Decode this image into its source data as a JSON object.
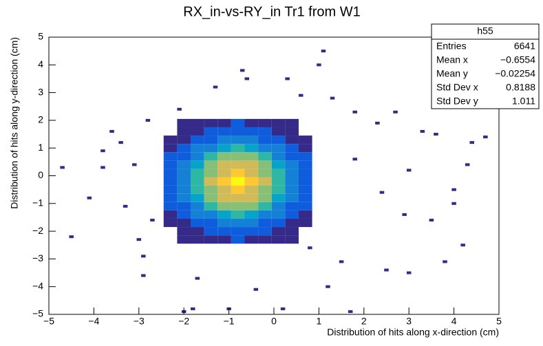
{
  "chart_data": {
    "type": "heatmap",
    "title": "RX_in-vs-RY_in Tr1 from W1",
    "x_label": "Distribution of hits along x-direction (cm)",
    "y_label": "Distribution of hits along y-direction (cm)",
    "xlim": [
      -5,
      5
    ],
    "ylim": [
      -5,
      5
    ],
    "xticks": [
      {
        "value": -5,
        "label": "−5"
      },
      {
        "value": -4,
        "label": "−4"
      },
      {
        "value": -3,
        "label": "−3"
      },
      {
        "value": -2,
        "label": "−2"
      },
      {
        "value": -1,
        "label": "−1"
      },
      0,
      1,
      2,
      3,
      4,
      5
    ],
    "yticks": [
      {
        "value": -5,
        "label": "−5"
      },
      {
        "value": -4,
        "label": "−4"
      },
      {
        "value": -3,
        "label": "−3"
      },
      {
        "value": -2,
        "label": "−2"
      },
      {
        "value": -1,
        "label": "−1"
      },
      0,
      1,
      2,
      3,
      4,
      5
    ],
    "palette": [
      "#352a87",
      "#0f5cdd",
      "#1481d6",
      "#06a4ca",
      "#2eb7a4",
      "#87bf77",
      "#d1bb59",
      "#fec832",
      "#f9fb0e"
    ],
    "x": [
      -2.3,
      -2.0,
      -1.7,
      -1.4,
      -1.1,
      -0.8,
      -0.5,
      -0.2,
      0.1,
      0.4,
      0.7
    ],
    "y": [
      -2.3,
      -2.0,
      -1.7,
      -1.4,
      -1.1,
      -0.8,
      -0.5,
      -0.2,
      0.1,
      0.4,
      0.7,
      1.0,
      1.3,
      1.6,
      1.9
    ],
    "z": [
      [
        0,
        1,
        1,
        1,
        1,
        2,
        1,
        1,
        1,
        1,
        0
      ],
      [
        0,
        1,
        1,
        2,
        3,
        3,
        3,
        2,
        1,
        1,
        0
      ],
      [
        1,
        1,
        2,
        3,
        4,
        5,
        4,
        3,
        2,
        1,
        1
      ],
      [
        1,
        2,
        4,
        5,
        6,
        7,
        6,
        5,
        4,
        2,
        1
      ],
      [
        2,
        3,
        5,
        7,
        9,
        9,
        9,
        7,
        5,
        3,
        2
      ],
      [
        2,
        4,
        6,
        9,
        11,
        12,
        11,
        9,
        6,
        4,
        2
      ],
      [
        2,
        4,
        7,
        10,
        12,
        13,
        12,
        10,
        7,
        4,
        2
      ],
      [
        2,
        5,
        7,
        11,
        13,
        14,
        13,
        11,
        7,
        5,
        2
      ],
      [
        2,
        4,
        7,
        10,
        12,
        13,
        12,
        10,
        7,
        4,
        2
      ],
      [
        2,
        4,
        6,
        9,
        11,
        12,
        11,
        9,
        6,
        4,
        2
      ],
      [
        2,
        3,
        5,
        7,
        9,
        9,
        9,
        7,
        5,
        3,
        2
      ],
      [
        1,
        2,
        4,
        5,
        6,
        7,
        6,
        5,
        4,
        2,
        1
      ],
      [
        1,
        1,
        2,
        3,
        4,
        5,
        4,
        3,
        2,
        1,
        1
      ],
      [
        0,
        1,
        1,
        2,
        3,
        3,
        3,
        2,
        1,
        1,
        0
      ],
      [
        0,
        1,
        1,
        1,
        1,
        2,
        1,
        1,
        1,
        1,
        0
      ]
    ],
    "sparse": {
      "x": [
        -4.7,
        -4.5,
        -4.1,
        -3.8,
        -3.8,
        -3.6,
        -3.4,
        -3.3,
        -3.1,
        -3.0,
        -2.9,
        -2.7,
        -2.8,
        -2.9,
        -1.8,
        -1.0,
        0.2,
        1.7,
        -2.0,
        1.1,
        1.0,
        0.3,
        1.3,
        1.8,
        2.3,
        2.7,
        3.3,
        3.6,
        4.4,
        4.7,
        4.0,
        4.3,
        3.0,
        2.4,
        2.9,
        3.5,
        4.2,
        3.8,
        3.0,
        2.5,
        1.5,
        1.2,
        0.8,
        -1.7,
        -0.4,
        -0.7,
        -0.6,
        -1.3,
        -2.1,
        0.6,
        4.0,
        1.8
      ],
      "y": [
        0.3,
        -2.2,
        -0.8,
        0.3,
        0.9,
        1.6,
        1.2,
        -1.1,
        0.4,
        -2.3,
        -2.9,
        -1.6,
        2.0,
        -3.6,
        -4.8,
        -4.8,
        -4.8,
        -4.9,
        -4.9,
        4.5,
        4.0,
        3.5,
        2.8,
        2.3,
        1.9,
        2.3,
        1.6,
        1.5,
        1.2,
        1.4,
        -0.5,
        0.4,
        0.2,
        -0.6,
        -1.4,
        -1.6,
        -2.5,
        -3.1,
        -3.5,
        -3.4,
        -3.1,
        -4.0,
        -2.6,
        -3.7,
        -4.1,
        3.8,
        3.5,
        3.2,
        2.4,
        2.9,
        -1.0,
        0.6
      ],
      "z": [
        1,
        1,
        1,
        1,
        1,
        1,
        1,
        1,
        1,
        1,
        1,
        1,
        1,
        1,
        1,
        1,
        1,
        1,
        1,
        1,
        1,
        1,
        1,
        1,
        1,
        1,
        1,
        1,
        1,
        1,
        1,
        1,
        1,
        1,
        1,
        1,
        1,
        1,
        1,
        1,
        1,
        1,
        1,
        1,
        1,
        1,
        1,
        1,
        1,
        1,
        1,
        1
      ]
    },
    "stats_box": {
      "title": "h55",
      "rows": [
        [
          "Entries",
          "6641"
        ],
        [
          "Mean x",
          "−0.6554"
        ],
        [
          "Mean y",
          "−0.02254"
        ],
        [
          "Std Dev x",
          "0.8188"
        ],
        [
          "Std Dev y",
          "1.011"
        ]
      ]
    }
  }
}
